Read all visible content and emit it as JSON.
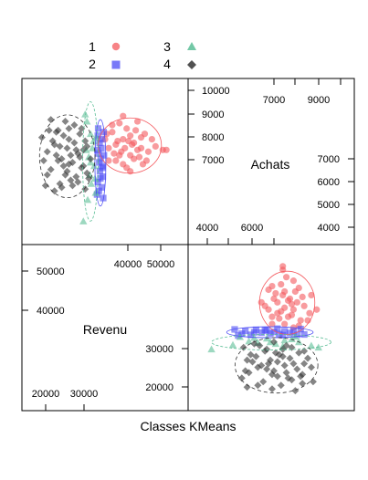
{
  "chart_data": {
    "type": "scatter",
    "title": "",
    "xlabel": "Classes KMeans",
    "matrix_variables": [
      "Revenu",
      "Achats"
    ],
    "variable_labels": {
      "revenu": "Revenu",
      "achats": "Achats"
    },
    "ticks": {
      "revenu_upper_left": [
        "50000",
        "40000",
        "20000",
        "30000"
      ],
      "revenu_upper_right": [
        "40000",
        "50000"
      ],
      "achats_upper_right_top": [
        "7000",
        "9000"
      ],
      "achats_right": [
        "7000",
        "6000",
        "5000",
        "4000"
      ],
      "achats_left_upper": [
        "10000",
        "9000",
        "8000",
        "7000"
      ],
      "achats_bottom": [
        "4000",
        "6000"
      ],
      "revenu_lower_right": [
        "30000",
        "20000"
      ]
    },
    "legend": {
      "placement": "top",
      "entries": [
        {
          "label": "1",
          "symbol": "circle",
          "color": "#F4595E"
        },
        {
          "label": "2",
          "symbol": "square",
          "color": "#4B4BF5"
        },
        {
          "label": "3",
          "symbol": "triangle",
          "color": "#5BBE96"
        },
        {
          "label": "4",
          "symbol": "diamond",
          "color": "#333333"
        }
      ]
    },
    "grid": false,
    "ylim_achats": [
      3000,
      11500
    ],
    "xlim_revenu": [
      15000,
      57000
    ],
    "series": [
      {
        "name": "1",
        "color": "#F4595E",
        "marker": "circle",
        "points": [
          [
            39000,
            8200
          ],
          [
            41000,
            8500
          ],
          [
            43000,
            8700
          ],
          [
            45000,
            7900
          ],
          [
            40000,
            7600
          ],
          [
            42000,
            9100
          ],
          [
            44000,
            8300
          ],
          [
            46000,
            8000
          ],
          [
            38000,
            8900
          ],
          [
            47000,
            8800
          ],
          [
            39000,
            7300
          ],
          [
            41000,
            7100
          ],
          [
            43000,
            7600
          ],
          [
            48000,
            7800
          ],
          [
            50000,
            8100
          ],
          [
            36000,
            8500
          ],
          [
            37000,
            8000
          ],
          [
            45000,
            9500
          ],
          [
            42000,
            6900
          ],
          [
            40000,
            9400
          ],
          [
            44000,
            7400
          ],
          [
            46000,
            8600
          ],
          [
            52000,
            7900
          ],
          [
            53000,
            7900
          ],
          [
            37000,
            7300
          ],
          [
            38000,
            9300
          ],
          [
            39500,
            8400
          ],
          [
            41500,
            8000
          ],
          [
            43500,
            8200
          ],
          [
            45500,
            7500
          ],
          [
            47500,
            7300
          ],
          [
            49000,
            8500
          ],
          [
            36500,
            8800
          ],
          [
            40500,
            7800
          ],
          [
            42500,
            8400
          ],
          [
            44500,
            9000
          ],
          [
            38500,
            7700
          ],
          [
            46500,
            7100
          ],
          [
            41000,
            9800
          ],
          [
            43000,
            6700
          ]
        ]
      },
      {
        "name": "2",
        "color": "#4B4BF5",
        "marker": "square",
        "points": [
          [
            34000,
            8700
          ],
          [
            34500,
            8300
          ],
          [
            35000,
            8000
          ],
          [
            34200,
            7700
          ],
          [
            34800,
            7400
          ],
          [
            35200,
            7000
          ],
          [
            34600,
            6700
          ],
          [
            35400,
            6400
          ],
          [
            34000,
            6100
          ],
          [
            35100,
            5800
          ],
          [
            34300,
            5600
          ],
          [
            35600,
            8900
          ],
          [
            33900,
            7900
          ],
          [
            34400,
            7200
          ],
          [
            35300,
            6900
          ],
          [
            34700,
            6300
          ],
          [
            33800,
            5400
          ],
          [
            35500,
            5200
          ],
          [
            34100,
            9100
          ],
          [
            34900,
            8500
          ],
          [
            35700,
            7600
          ]
        ]
      },
      {
        "name": "3",
        "color": "#5BBE96",
        "marker": "triangle",
        "points": [
          [
            31000,
            9500
          ],
          [
            32000,
            8800
          ],
          [
            32500,
            8000
          ],
          [
            31500,
            7500
          ],
          [
            33000,
            7000
          ],
          [
            31800,
            6500
          ],
          [
            32200,
            6000
          ],
          [
            33400,
            5500
          ],
          [
            31200,
            5100
          ],
          [
            32800,
            8400
          ],
          [
            30800,
            7900
          ],
          [
            33500,
            8600
          ],
          [
            30500,
            9900
          ],
          [
            32000,
            7200
          ],
          [
            33200,
            6300
          ],
          [
            30000,
            3900
          ]
        ]
      },
      {
        "name": "4",
        "color": "#333333",
        "marker": "diamond",
        "points": [
          [
            20000,
            7800
          ],
          [
            22000,
            8200
          ],
          [
            24000,
            7400
          ],
          [
            26000,
            8500
          ],
          [
            28000,
            7900
          ],
          [
            30000,
            7000
          ],
          [
            21000,
            6800
          ],
          [
            23000,
            9000
          ],
          [
            25000,
            6500
          ],
          [
            27000,
            7200
          ],
          [
            29000,
            8800
          ],
          [
            31000,
            6600
          ],
          [
            22500,
            7600
          ],
          [
            24500,
            8700
          ],
          [
            26500,
            6200
          ],
          [
            28500,
            7700
          ],
          [
            30500,
            8400
          ],
          [
            20500,
            9000
          ],
          [
            23500,
            6000
          ],
          [
            25500,
            8000
          ],
          [
            27500,
            9300
          ],
          [
            29500,
            6900
          ],
          [
            21500,
            8400
          ],
          [
            24000,
            5800
          ],
          [
            26000,
            7100
          ],
          [
            28000,
            6400
          ],
          [
            30000,
            7900
          ],
          [
            19000,
            7300
          ],
          [
            18500,
            8600
          ],
          [
            32000,
            7400
          ],
          [
            22000,
            5600
          ],
          [
            25000,
            9500
          ],
          [
            27000,
            5900
          ],
          [
            29000,
            7500
          ],
          [
            23000,
            7300
          ],
          [
            31000,
            8100
          ],
          [
            20000,
            6500
          ],
          [
            26000,
            9100
          ],
          [
            28500,
            6100
          ],
          [
            24500,
            7000
          ],
          [
            22500,
            8900
          ],
          [
            30500,
            5700
          ],
          [
            21000,
            9600
          ],
          [
            27500,
            8300
          ],
          [
            25500,
            6700
          ],
          [
            23500,
            8100
          ],
          [
            29500,
            9100
          ],
          [
            19500,
            5900
          ],
          [
            26500,
            7600
          ],
          [
            31500,
            6300
          ]
        ]
      }
    ]
  }
}
